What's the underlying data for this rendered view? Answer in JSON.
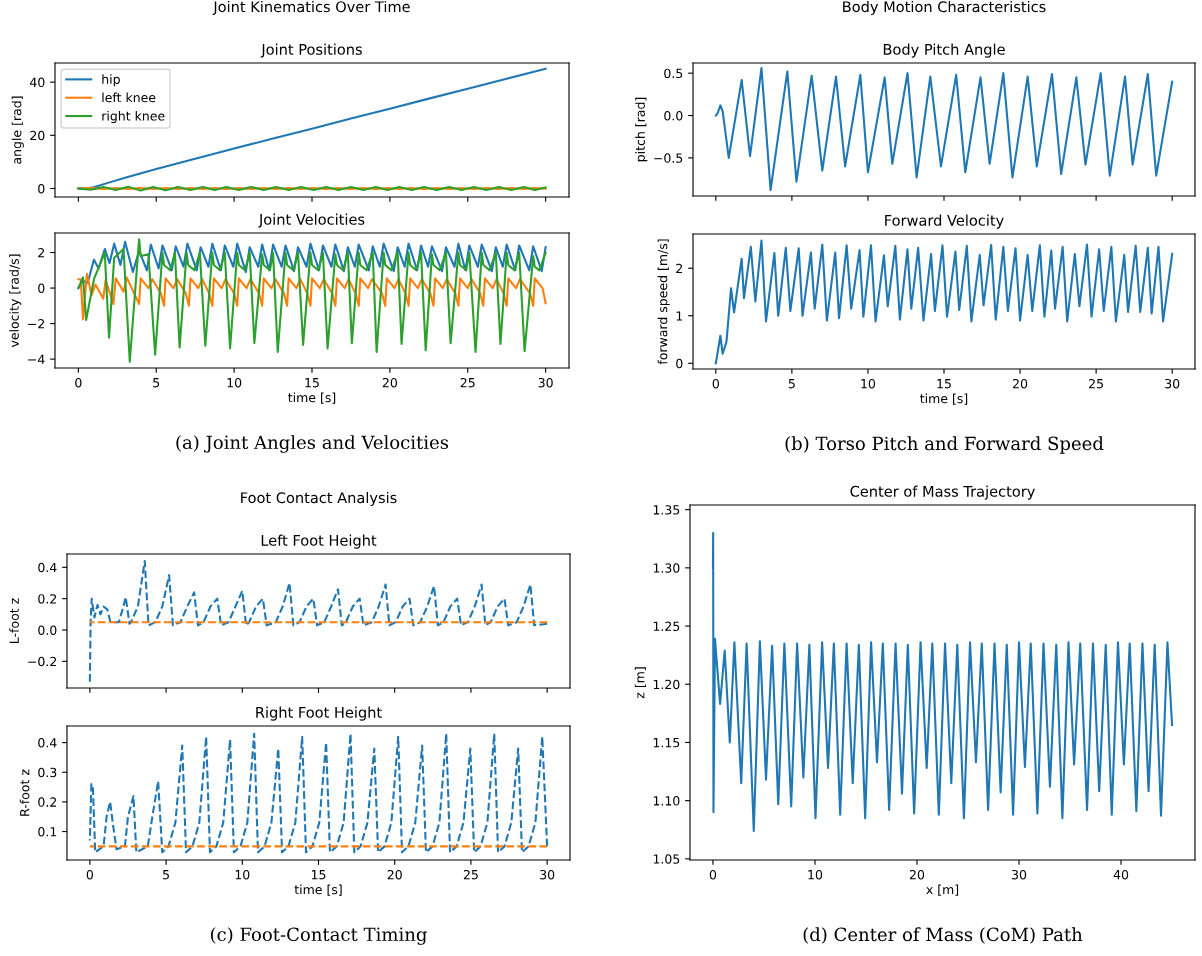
{
  "chart_data": [
    {
      "type": "line",
      "title": "Joint Positions",
      "ylabel": "angle [rad]",
      "xlim": [
        -1.5,
        31.5
      ],
      "ylim": [
        -3.2,
        47.2
      ],
      "xticks": [
        0,
        5,
        10,
        15,
        20,
        25,
        30
      ],
      "yticks": [
        0,
        20,
        40
      ],
      "tick_labels": "y",
      "legend": "top left",
      "annotations": [
        "Joint Kinematics Over Time"
      ],
      "series": [
        {
          "name": "hip",
          "color": "#1f77b4",
          "line_style": "solid",
          "x": [
            0,
            0.5,
            1,
            2,
            3,
            5,
            7.5,
            10,
            12.5,
            15,
            17.5,
            20,
            22.5,
            25,
            27.5,
            30
          ],
          "values": [
            0,
            0,
            0.5,
            2.3,
            4,
            7.3,
            11.2,
            15,
            18.8,
            22.5,
            26.3,
            30,
            33.8,
            37.5,
            41.3,
            45
          ]
        },
        {
          "name": "left knee",
          "color": "#ff7f0e",
          "line_style": "solid",
          "x": [
            0,
            0.8,
            1.6,
            2.4,
            3.2,
            4.0,
            4.8,
            5.6,
            6.4,
            7.2,
            8.0,
            8.75,
            9.5,
            10.3,
            11.1,
            11.9,
            12.7,
            13.5,
            14.3,
            15.1,
            15.9,
            16.7,
            17.5,
            18.3,
            19.1,
            19.85,
            20.6,
            21.4,
            22.2,
            23.0,
            23.8,
            24.6,
            25.4,
            26.2,
            27.0,
            27.8,
            28.6,
            29.3,
            30
          ],
          "values": [
            0,
            0.2,
            -0.2,
            0.2,
            -0.2,
            0.2,
            -0.2,
            0.2,
            -0.2,
            0.2,
            -0.2,
            0.2,
            -0.2,
            0.2,
            -0.2,
            0.2,
            -0.2,
            0.2,
            -0.2,
            0.2,
            -0.2,
            0.2,
            -0.2,
            0.2,
            -0.2,
            0.2,
            -0.2,
            0.2,
            -0.2,
            0.2,
            -0.2,
            0.2,
            -0.2,
            0.2,
            -0.2,
            0.2,
            -0.2,
            0.2,
            -0.1
          ]
        },
        {
          "name": "right knee",
          "color": "#2ca02c",
          "line_style": "solid",
          "x": [
            0,
            0.8,
            1.6,
            2.4,
            3.2,
            4.0,
            4.8,
            5.6,
            6.4,
            7.2,
            8.0,
            8.75,
            9.5,
            10.3,
            11.1,
            11.9,
            12.7,
            13.5,
            14.3,
            15.1,
            15.9,
            16.7,
            17.5,
            18.3,
            19.1,
            19.85,
            20.6,
            21.4,
            22.2,
            23.0,
            23.8,
            24.6,
            25.4,
            26.2,
            27.0,
            27.8,
            28.6,
            29.3,
            30
          ],
          "values": [
            0,
            -0.5,
            0.6,
            -0.6,
            0.7,
            -0.8,
            0.6,
            -0.7,
            0.6,
            -0.6,
            0.6,
            -0.6,
            0.6,
            -0.6,
            0.6,
            -0.6,
            0.6,
            -0.6,
            0.6,
            -0.6,
            0.6,
            -0.6,
            0.6,
            -0.6,
            0.6,
            -0.6,
            0.6,
            -0.6,
            0.6,
            -0.6,
            0.6,
            -0.6,
            0.6,
            -0.6,
            0.6,
            -0.6,
            0.6,
            -0.6,
            0.4
          ]
        }
      ]
    },
    {
      "type": "line",
      "title": "Joint Velocities",
      "xlabel": "time [s]",
      "ylabel": "velocity [rad/s]",
      "xlim": [
        -1.5,
        31.5
      ],
      "ylim": [
        -4.5,
        3.1
      ],
      "xticks": [
        0,
        5,
        10,
        15,
        20,
        25,
        30
      ],
      "yticks": [
        -4,
        -2,
        0,
        2
      ],
      "annotations": [
        "(a) Joint Angles and Velocities"
      ],
      "series": [
        {
          "color": "#1f77b4",
          "line_style": "solid",
          "x": [
            0,
            0.3,
            0.6,
            1.0,
            1.3,
            1.7,
            2.0,
            2.3,
            2.7,
            3.0,
            3.5,
            3.9,
            4.4,
            4.65,
            5.15,
            5.4,
            6.0,
            6.25,
            6.75,
            7.0,
            7.6,
            7.85,
            8.35,
            8.6,
            9.15,
            9.4,
            9.95,
            10.2,
            10.75,
            11.0,
            11.55,
            11.8,
            12.25,
            12.5,
            13.05,
            13.3,
            13.85,
            14.1,
            14.65,
            14.9,
            15.45,
            15.7,
            16.25,
            16.5,
            17.05,
            17.3,
            17.75,
            18.0,
            18.65,
            18.9,
            19.35,
            19.6,
            20.25,
            20.5,
            20.95,
            21.2,
            21.75,
            22.0,
            22.45,
            22.7,
            23.35,
            23.6,
            24.15,
            24.4,
            24.85,
            25.1,
            25.65,
            25.9,
            26.55,
            26.8,
            27.25,
            27.5,
            28.05,
            28.3,
            28.95,
            29.2,
            29.75,
            30
          ],
          "values": [
            0,
            0.4,
            0.3,
            1.6,
            1.1,
            2.2,
            1.4,
            2.5,
            1.3,
            2.6,
            0.9,
            2.1,
            1.0,
            2.45,
            1.1,
            2.4,
            1.0,
            2.35,
            1.2,
            2.5,
            1.0,
            2.3,
            1.2,
            2.5,
            1.0,
            2.4,
            1.2,
            2.5,
            0.9,
            2.3,
            1.2,
            2.45,
            1.0,
            2.45,
            1.2,
            2.4,
            0.95,
            2.3,
            1.2,
            2.5,
            1.0,
            2.4,
            1.2,
            2.45,
            0.95,
            2.3,
            1.2,
            2.45,
            1.0,
            2.35,
            1.2,
            2.5,
            0.95,
            2.3,
            1.2,
            2.5,
            1.0,
            2.4,
            1.2,
            2.35,
            0.95,
            2.3,
            1.2,
            2.5,
            1.0,
            2.4,
            1.2,
            2.45,
            0.95,
            2.3,
            1.2,
            2.45,
            1.0,
            2.4,
            1.0,
            2.35,
            0.95,
            2.3
          ]
        },
        {
          "color": "#ff7f0e",
          "line_style": "solid",
          "x": [
            0,
            0.15,
            0.3,
            0.55,
            0.85,
            1.1,
            1.6,
            1.75,
            2.25,
            2.4,
            2.9,
            3.1,
            3.9,
            4.0,
            4.5,
            4.75,
            5.3,
            5.5,
            5.6,
            6.1,
            6.35,
            6.9,
            7.1,
            7.2,
            7.7,
            7.95,
            8.4,
            8.6,
            8.7,
            9.2,
            9.45,
            10.0,
            10.2,
            10.3,
            10.8,
            11.05,
            11.6,
            11.8,
            11.9,
            12.4,
            12.65,
            13.2,
            13.4,
            13.5,
            14.0,
            14.25,
            14.7,
            14.9,
            15.0,
            15.5,
            15.75,
            16.3,
            16.5,
            16.6,
            17.1,
            17.35,
            17.8,
            18.0,
            18.1,
            18.6,
            18.85,
            19.5,
            19.7,
            19.8,
            20.3,
            20.55,
            21.0,
            21.2,
            21.3,
            21.8,
            22.05,
            22.6,
            22.8,
            22.9,
            23.4,
            23.65,
            24.2,
            24.4,
            24.5,
            25.0,
            25.25,
            25.8,
            26.0,
            26.1,
            26.6,
            26.85,
            27.3,
            27.5,
            27.6,
            28.1,
            28.35,
            29.0,
            29.2,
            29.3,
            29.8,
            30
          ],
          "values": [
            0.5,
            0.5,
            -1.75,
            0.8,
            -0.4,
            0.2,
            -0.6,
            0.45,
            -0.9,
            0.55,
            -0.2,
            0.6,
            -0.9,
            0.55,
            0.0,
            0.5,
            -0.3,
            -1.0,
            0.55,
            0.0,
            0.5,
            -0.3,
            -1.0,
            0.55,
            0.0,
            0.5,
            -0.3,
            -1.0,
            0.55,
            0.0,
            0.5,
            -0.3,
            -1.0,
            0.55,
            0.0,
            0.5,
            -0.3,
            -1.0,
            0.55,
            0.0,
            0.5,
            -0.3,
            -1.0,
            0.55,
            0.0,
            0.5,
            -0.3,
            -1.0,
            0.55,
            0.0,
            0.5,
            -0.3,
            -1.0,
            0.55,
            0.0,
            0.5,
            -0.3,
            -1.0,
            0.55,
            0.0,
            0.5,
            -0.3,
            -1.0,
            0.55,
            0.0,
            0.5,
            -0.3,
            -1.0,
            0.55,
            0.0,
            0.5,
            -0.3,
            -1.0,
            0.55,
            0.0,
            0.5,
            -0.3,
            -1.0,
            0.55,
            0.0,
            0.5,
            -0.3,
            -1.0,
            0.55,
            0.0,
            0.5,
            -0.3,
            -1.0,
            0.55,
            0.0,
            0.5,
            -0.3,
            -1.0,
            0.55,
            0.0,
            -0.85
          ]
        },
        {
          "color": "#2ca02c",
          "line_style": "solid",
          "x": [
            0,
            0.3,
            0.5,
            1.0,
            1.7,
            1.75,
            1.97,
            2.3,
            2.9,
            3.3,
            3.9,
            4.0,
            4.5,
            4.93,
            5.4,
            5.5,
            5.9,
            6.2,
            6.5,
            6.95,
            7.05,
            7.45,
            7.8,
            8.15,
            8.6,
            8.7,
            9.1,
            9.4,
            9.74,
            10.2,
            10.3,
            10.7,
            11.0,
            11.3,
            11.8,
            11.9,
            12.3,
            12.5,
            12.8,
            13.3,
            13.4,
            13.8,
            14.1,
            14.43,
            14.9,
            15.0,
            15.4,
            15.7,
            16.0,
            16.5,
            16.6,
            17.0,
            17.3,
            17.56,
            18.0,
            18.1,
            18.5,
            18.9,
            19.15,
            19.6,
            19.7,
            20.1,
            20.5,
            20.75,
            21.2,
            21.3,
            21.7,
            22.0,
            22.3,
            22.7,
            22.8,
            23.2,
            23.6,
            23.9,
            24.4,
            24.5,
            24.9,
            25.1,
            25.5,
            25.9,
            26.0,
            26.4,
            26.8,
            27.1,
            27.5,
            27.6,
            28.0,
            28.3,
            28.65,
            29.2,
            29.3,
            29.6,
            30
          ],
          "values": [
            0,
            0.6,
            -1.8,
            0.5,
            2.0,
            1.0,
            -2.8,
            1.7,
            2.2,
            -4.15,
            2.75,
            1.8,
            1.9,
            -3.75,
            2.0,
            1.3,
            1.0,
            2.0,
            -3.35,
            2.0,
            1.3,
            1.0,
            2.0,
            -3.25,
            2.0,
            1.3,
            1.0,
            2.0,
            -3.4,
            2.0,
            1.3,
            1.0,
            2.0,
            -3.1,
            1.9,
            1.3,
            1.0,
            2.0,
            -3.6,
            2.0,
            1.3,
            1.0,
            2.0,
            -3.2,
            2.0,
            1.3,
            1.0,
            2.0,
            -3.4,
            1.9,
            1.3,
            1.0,
            2.0,
            -3.1,
            2.0,
            1.3,
            1.0,
            2.0,
            -3.6,
            2.0,
            1.3,
            1.0,
            2.0,
            -3.15,
            2.0,
            1.3,
            1.0,
            2.0,
            -3.5,
            1.9,
            1.3,
            1.0,
            2.0,
            -3.1,
            2.0,
            1.3,
            1.0,
            2.0,
            -3.6,
            2.0,
            1.3,
            1.0,
            2.0,
            -3.15,
            2.0,
            1.3,
            1.0,
            2.0,
            -3.55,
            1.8,
            1.2,
            1.0,
            2.0
          ]
        }
      ]
    },
    {
      "type": "line",
      "title": "Body Pitch Angle",
      "ylabel": "pitch [rad]",
      "xlim": [
        -1.5,
        31.5
      ],
      "ylim": [
        -0.95,
        0.62
      ],
      "xticks": [
        0,
        5,
        10,
        15,
        20,
        25,
        30
      ],
      "yticks": [
        -0.5,
        {
          "value": 0,
          "label": "0.0"
        },
        0.5
      ],
      "tick_labels": "y",
      "annotations": [
        "Body Motion Characteristics"
      ],
      "series": [
        {
          "color": "#1f77b4",
          "line_style": "solid",
          "x": [
            0,
            0.1,
            0.3,
            0.45,
            0.85,
            1.7,
            2.25,
            3.0,
            3.6,
            4.7,
            5.3,
            6.3,
            7.0,
            7.9,
            8.5,
            9.5,
            10.0,
            11.1,
            11.6,
            12.6,
            13.2,
            14.1,
            14.8,
            15.8,
            16.4,
            17.4,
            18.0,
            18.9,
            19.5,
            20.5,
            21.1,
            22.1,
            22.7,
            23.7,
            24.3,
            25.3,
            25.9,
            26.9,
            27.4,
            28.4,
            28.95,
            30
          ],
          "values": [
            0,
            0.02,
            0.12,
            0.05,
            -0.5,
            0.42,
            -0.48,
            0.56,
            -0.88,
            0.52,
            -0.78,
            0.47,
            -0.65,
            0.46,
            -0.6,
            0.48,
            -0.67,
            0.45,
            -0.57,
            0.5,
            -0.73,
            0.46,
            -0.6,
            0.48,
            -0.67,
            0.45,
            -0.57,
            0.5,
            -0.73,
            0.46,
            -0.6,
            0.49,
            -0.69,
            0.45,
            -0.58,
            0.5,
            -0.71,
            0.46,
            -0.58,
            0.49,
            -0.71,
            0.4
          ]
        }
      ]
    },
    {
      "type": "line",
      "title": "Forward Velocity",
      "xlabel": "time [s]",
      "ylabel": "forward speed [m/s]",
      "xlim": [
        -1.5,
        31.5
      ],
      "ylim": [
        -0.12,
        2.72
      ],
      "xticks": [
        0,
        5,
        10,
        15,
        20,
        25,
        30
      ],
      "yticks": [
        0,
        1,
        2
      ],
      "annotations": [
        "(b) Torso Pitch and Forward Speed"
      ],
      "series": [
        {
          "color": "#1f77b4",
          "line_style": "solid",
          "x": [
            0,
            0.3,
            0.45,
            0.7,
            1.0,
            1.2,
            1.7,
            1.85,
            2.3,
            2.6,
            3.0,
            3.3,
            3.85,
            4.1,
            4.6,
            4.9,
            5.45,
            5.7,
            6.25,
            6.5,
            7.0,
            7.3,
            7.85,
            8.1,
            8.6,
            8.9,
            9.45,
            9.7,
            10.2,
            10.5,
            11.05,
            11.3,
            11.8,
            12.1,
            12.6,
            12.85,
            13.3,
            13.65,
            14.15,
            14.4,
            14.9,
            15.2,
            15.75,
            16.0,
            16.5,
            16.8,
            17.35,
            17.6,
            18.1,
            18.4,
            18.9,
            19.2,
            19.7,
            20.0,
            20.5,
            20.8,
            21.3,
            21.6,
            22.05,
            22.3,
            22.8,
            23.1,
            23.6,
            23.9,
            24.4,
            24.7,
            25.2,
            25.5,
            26.0,
            26.3,
            26.85,
            27.1,
            27.6,
            27.9,
            28.4,
            28.65,
            29.1,
            29.4,
            30
          ],
          "values": [
            0,
            0.58,
            0.2,
            0.45,
            1.58,
            1.07,
            2.2,
            1.37,
            2.45,
            1.3,
            2.58,
            0.88,
            2.32,
            1.0,
            2.43,
            1.1,
            2.42,
            1.0,
            2.33,
            1.15,
            2.5,
            0.9,
            2.33,
            0.95,
            2.48,
            1.15,
            2.38,
            0.98,
            2.48,
            0.88,
            2.27,
            1.2,
            2.47,
            0.92,
            2.4,
            1.15,
            2.43,
            0.9,
            2.3,
            1.1,
            2.48,
            0.98,
            2.35,
            1.12,
            2.47,
            0.88,
            2.28,
            1.22,
            2.49,
            0.92,
            2.45,
            1.1,
            2.42,
            0.9,
            2.28,
            1.1,
            2.48,
            0.98,
            2.37,
            1.15,
            2.45,
            0.88,
            2.3,
            1.2,
            2.5,
            0.98,
            2.4,
            1.1,
            2.45,
            0.88,
            2.28,
            1.08,
            2.47,
            1.08,
            2.43,
            1.05,
            2.45,
            0.88,
            2.3
          ]
        }
      ]
    },
    {
      "type": "line",
      "title": "Left Foot Height",
      "ylabel": "L-foot z",
      "xlim": [
        -1.5,
        31.5
      ],
      "ylim": [
        -0.37,
        0.485
      ],
      "xticks": [
        0,
        5,
        10,
        15,
        20,
        25,
        30
      ],
      "yticks": [
        -0.2,
        {
          "value": 0,
          "label": "0.0"
        },
        0.2,
        0.4
      ],
      "tick_labels": "y",
      "annotations": [
        "Foot Contact Analysis"
      ],
      "series": [
        {
          "color": "#1f77b4",
          "line_style": "dashed",
          "x": [
            0,
            0.05,
            0.12,
            0.3,
            0.5,
            0.7,
            0.9,
            1.15,
            1.35,
            1.9,
            2.2,
            2.35,
            2.6,
            2.7,
            3.15,
            3.6,
            3.85,
            4.3,
            4.75,
            5.2,
            5.45,
            5.94,
            6.39,
            6.84,
            7.09,
            7.46,
            7.91,
            8.36,
            8.61,
            9.1,
            9.55,
            10.0,
            10.25,
            10.45,
            10.9,
            11.35,
            11.6,
            12.2,
            12.65,
            13.1,
            13.35,
            13.76,
            14.21,
            14.66,
            14.91,
            15.38,
            15.83,
            16.28,
            16.53,
            16.8,
            17.25,
            17.7,
            17.95,
            18.5,
            18.95,
            19.4,
            19.65,
            20.07,
            20.52,
            20.97,
            21.22,
            21.68,
            22.13,
            22.58,
            22.83,
            23.2,
            23.65,
            24.1,
            24.35,
            24.8,
            25.25,
            25.7,
            25.95,
            26.3,
            26.75,
            27.2,
            27.45,
            28.0,
            28.45,
            28.9,
            29.15,
            30
          ],
          "values": [
            -0.33,
            0.05,
            0.2,
            0.08,
            0.16,
            0.1,
            0.15,
            0.13,
            0.05,
            0.05,
            0.15,
            0.21,
            0.04,
            0.05,
            0.15,
            0.44,
            0.03,
            0.05,
            0.15,
            0.35,
            0.03,
            0.05,
            0.15,
            0.24,
            0.03,
            0.05,
            0.15,
            0.2,
            0.03,
            0.05,
            0.15,
            0.25,
            0.03,
            0.05,
            0.15,
            0.2,
            0.03,
            0.05,
            0.15,
            0.3,
            0.03,
            0.05,
            0.15,
            0.2,
            0.03,
            0.05,
            0.15,
            0.26,
            0.03,
            0.05,
            0.15,
            0.2,
            0.03,
            0.05,
            0.15,
            0.29,
            0.03,
            0.05,
            0.15,
            0.2,
            0.03,
            0.05,
            0.15,
            0.28,
            0.03,
            0.05,
            0.15,
            0.2,
            0.03,
            0.05,
            0.15,
            0.29,
            0.03,
            0.05,
            0.15,
            0.2,
            0.03,
            0.05,
            0.15,
            0.29,
            0.03,
            0.04
          ]
        },
        {
          "color": "#ff7f0e",
          "line_style": "dashed",
          "x": [
            0,
            30
          ],
          "values": [
            0.05,
            0.05
          ]
        }
      ]
    },
    {
      "type": "line",
      "title": "Right Foot Height",
      "xlabel": "time [s]",
      "ylabel": "R-foot z",
      "xlim": [
        -1.5,
        31.5
      ],
      "ylim": [
        0.004,
        0.456
      ],
      "xticks": [
        0,
        5,
        10,
        15,
        20,
        25,
        30
      ],
      "yticks": [
        0.1,
        0.2,
        0.3,
        0.4
      ],
      "annotations": [
        "(c) Foot-Contact Timing"
      ],
      "series": [
        {
          "color": "#1f77b4",
          "line_style": "dashed",
          "x": [
            0,
            0.1,
            0.2,
            0.35,
            0.9,
            1.1,
            1.33,
            1.5,
            1.75,
            2.3,
            2.5,
            2.86,
            3.05,
            3.8,
            4.1,
            4.48,
            4.75,
            5.16,
            5.61,
            6.06,
            6.31,
            6.73,
            7.18,
            7.63,
            7.88,
            8.3,
            8.75,
            9.2,
            9.45,
            9.88,
            10.33,
            10.78,
            11.03,
            11.46,
            11.91,
            12.36,
            12.61,
            13.03,
            13.48,
            13.93,
            14.18,
            14.6,
            15.05,
            15.5,
            15.75,
            16.2,
            16.65,
            17.1,
            17.35,
            17.76,
            18.21,
            18.66,
            18.91,
            19.33,
            19.78,
            20.23,
            20.48,
            20.9,
            21.35,
            21.8,
            22.05,
            22.48,
            22.93,
            23.38,
            23.63,
            24.06,
            24.51,
            24.96,
            25.21,
            25.63,
            26.08,
            26.53,
            26.78,
            27.2,
            27.65,
            28.1,
            28.35,
            28.78,
            29.23,
            29.68,
            30
          ],
          "values": [
            0.07,
            0.26,
            0.25,
            0.03,
            0.05,
            0.15,
            0.2,
            0.13,
            0.04,
            0.05,
            0.15,
            0.22,
            0.03,
            0.05,
            0.15,
            0.27,
            0.03,
            0.05,
            0.13,
            0.39,
            0.03,
            0.05,
            0.13,
            0.42,
            0.03,
            0.05,
            0.13,
            0.41,
            0.03,
            0.05,
            0.13,
            0.43,
            0.03,
            0.05,
            0.13,
            0.38,
            0.03,
            0.05,
            0.13,
            0.42,
            0.03,
            0.05,
            0.13,
            0.4,
            0.03,
            0.05,
            0.13,
            0.43,
            0.03,
            0.05,
            0.13,
            0.38,
            0.03,
            0.05,
            0.13,
            0.42,
            0.03,
            0.05,
            0.13,
            0.39,
            0.03,
            0.05,
            0.13,
            0.43,
            0.03,
            0.05,
            0.13,
            0.38,
            0.03,
            0.05,
            0.13,
            0.43,
            0.03,
            0.05,
            0.13,
            0.38,
            0.03,
            0.05,
            0.13,
            0.42,
            0.05
          ]
        },
        {
          "color": "#ff7f0e",
          "line_style": "dashed",
          "x": [
            0,
            30
          ],
          "values": [
            0.05,
            0.05
          ]
        }
      ]
    },
    {
      "type": "line",
      "title": "Center of Mass Trajectory",
      "xlabel": "x [m]",
      "ylabel": "z [m]",
      "xlim": [
        -2.25,
        47.25
      ],
      "ylim": [
        1.049,
        1.354
      ],
      "xticks": [
        0,
        10,
        20,
        30,
        40
      ],
      "yticks": [
        {
          "value": 1.05,
          "label": "1.05"
        },
        {
          "value": 1.1,
          "label": "1.10"
        },
        {
          "value": 1.15,
          "label": "1.15"
        },
        {
          "value": 1.2,
          "label": "1.20"
        },
        {
          "value": 1.25,
          "label": "1.25"
        },
        {
          "value": 1.3,
          "label": "1.30"
        },
        {
          "value": 1.35,
          "label": "1.35"
        }
      ],
      "annotations": [
        "(d) Center of Mass (CoM) Path"
      ],
      "series": [
        {
          "color": "#1f77b4",
          "line_style": "solid",
          "x": [
            0,
            0.02,
            0.05,
            0.2,
            0.7,
            1.15,
            1.65,
            2.1,
            2.77,
            3.3,
            4.0,
            4.6,
            5.2,
            5.8,
            6.4,
            7.0,
            7.67,
            8.25,
            8.86,
            9.45,
            10.05,
            10.7,
            11.28,
            11.85,
            12.47,
            13.1,
            13.7,
            14.3,
            14.92,
            15.5,
            16.08,
            16.65,
            17.27,
            17.9,
            18.53,
            19.1,
            19.72,
            20.35,
            20.95,
            21.5,
            22.14,
            22.75,
            23.36,
            23.95,
            24.6,
            25.2,
            25.78,
            26.35,
            26.97,
            27.6,
            28.2,
            28.8,
            29.42,
            30.0,
            30.58,
            31.15,
            31.8,
            32.4,
            33.03,
            33.65,
            34.25,
            34.85,
            35.4,
            36.0,
            36.67,
            37.25,
            37.86,
            38.5,
            39.09,
            39.7,
            40.28,
            40.85,
            41.5,
            42.1,
            42.7,
            43.3,
            43.92,
            44.55,
            45.0
          ],
          "values": [
            1.3,
            1.33,
            1.09,
            1.239,
            1.183,
            1.229,
            1.15,
            1.236,
            1.115,
            1.235,
            1.074,
            1.237,
            1.118,
            1.233,
            1.097,
            1.235,
            1.095,
            1.235,
            1.12,
            1.234,
            1.085,
            1.236,
            1.128,
            1.235,
            1.088,
            1.235,
            1.115,
            1.234,
            1.085,
            1.236,
            1.133,
            1.235,
            1.092,
            1.235,
            1.106,
            1.234,
            1.089,
            1.236,
            1.128,
            1.235,
            1.088,
            1.235,
            1.115,
            1.234,
            1.085,
            1.236,
            1.133,
            1.235,
            1.092,
            1.235,
            1.107,
            1.234,
            1.088,
            1.236,
            1.129,
            1.235,
            1.089,
            1.235,
            1.112,
            1.234,
            1.085,
            1.236,
            1.131,
            1.235,
            1.092,
            1.235,
            1.108,
            1.234,
            1.088,
            1.236,
            1.131,
            1.235,
            1.091,
            1.235,
            1.108,
            1.234,
            1.087,
            1.236,
            1.165
          ]
        }
      ]
    }
  ]
}
